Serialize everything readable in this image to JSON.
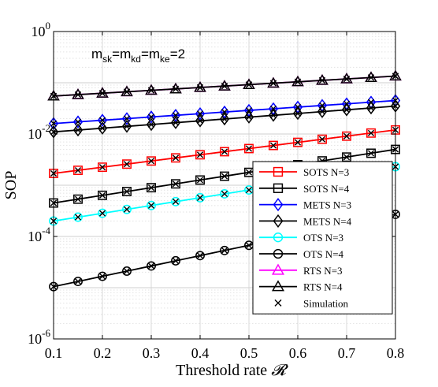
{
  "chart_data": {
    "type": "line",
    "xlabel": "Threshold rate",
    "xlabel_symbol": "𝓡",
    "ylabel": "SOP",
    "y_scale": "log",
    "xlim": [
      0.1,
      0.8
    ],
    "ylim": [
      1e-06,
      1
    ],
    "x_ticks": [
      "0.1",
      "0.2",
      "0.3",
      "0.4",
      "0.5",
      "0.6",
      "0.7",
      "0.8"
    ],
    "y_ticks": [
      {
        "base": "10",
        "exp": "-6"
      },
      {
        "base": "10",
        "exp": "-4"
      },
      {
        "base": "10",
        "exp": "-2"
      },
      {
        "base": "10",
        "exp": "0"
      }
    ],
    "grid": true,
    "minor_grid": true,
    "legend_position": "bottom-right",
    "annotation": {
      "parts": [
        {
          "t": "m",
          "s": "sk"
        },
        {
          "t": "=m",
          "s": "kd"
        },
        {
          "t": "=m",
          "s": "ke"
        },
        {
          "t": "=2",
          "s": ""
        }
      ]
    },
    "x": [
      0.1,
      0.15,
      0.2,
      0.25,
      0.3,
      0.35,
      0.4,
      0.45,
      0.5,
      0.55,
      0.6,
      0.65,
      0.7,
      0.75,
      0.8
    ],
    "series": [
      {
        "name": "SOTS N=3",
        "color": "#ff0000",
        "marker": "square",
        "y_start": 0.0017,
        "y_end": 0.012
      },
      {
        "name": "SOTS N=4",
        "color": "#000000",
        "marker": "square",
        "y_start": 0.00045,
        "y_end": 0.005
      },
      {
        "name": "METS N=3",
        "color": "#0000ff",
        "marker": "diamond",
        "y_start": 0.016,
        "y_end": 0.045
      },
      {
        "name": "METS N=4",
        "color": "#000000",
        "marker": "diamond",
        "y_start": 0.011,
        "y_end": 0.035
      },
      {
        "name": "OTS N=3",
        "color": "#00ffff",
        "marker": "circle",
        "y_start": 0.0002,
        "y_end": 0.0023
      },
      {
        "name": "OTS N=4",
        "color": "#000000",
        "marker": "circle",
        "y_start": 1.05e-05,
        "y_end": 0.00027
      },
      {
        "name": "RTS N=3",
        "color": "#ff00ff",
        "marker": "triangle",
        "y_start": 0.055,
        "y_end": 0.135
      },
      {
        "name": "RTS N=4",
        "color": "#000000",
        "marker": "triangle",
        "y_start": 0.055,
        "y_end": 0.135
      }
    ],
    "simulation_label": "Simulation"
  }
}
